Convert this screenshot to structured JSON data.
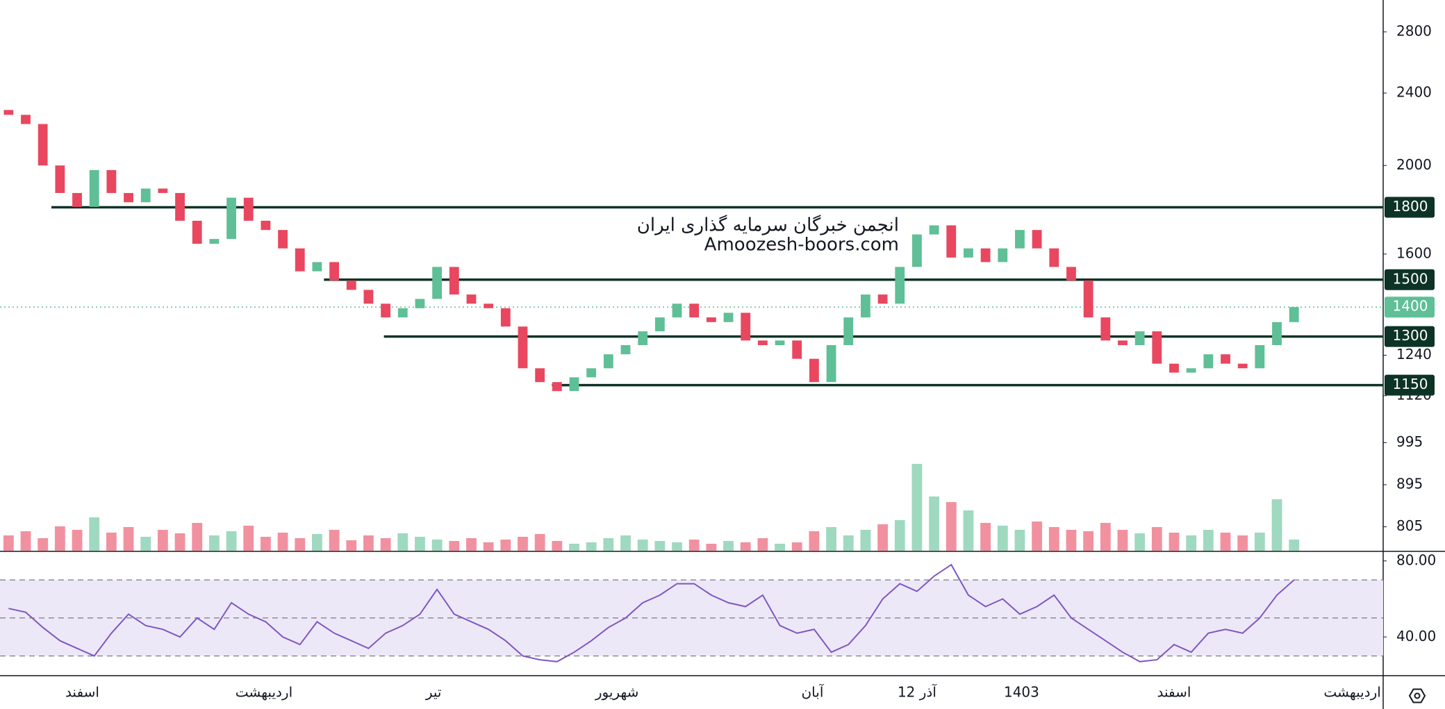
{
  "chart_data": {
    "type": "candlestick",
    "log_scale": true,
    "up_color": "#5fbf96",
    "down_color": "#e8475f",
    "open": [
      2300,
      2272,
      2220,
      2000,
      1866,
      1802,
      1977,
      1866,
      1823,
      1887,
      1866,
      1740,
      1642,
      1662,
      1844,
      1740,
      1700,
      1623,
      1532,
      1568,
      1497,
      1462,
      1412,
      1364,
      1396,
      1429,
      1549,
      1445,
      1412,
      1396,
      1333,
      1200,
      1159,
      1133,
      1173,
      1200,
      1243,
      1272,
      1317,
      1364,
      1412,
      1364,
      1348,
      1380,
      1287,
      1272,
      1287,
      1229,
      1159,
      1272,
      1364,
      1445,
      1412,
      1549,
      1681,
      1720,
      1586,
      1623,
      1568,
      1623,
      1700,
      1623,
      1549,
      1497,
      1364,
      1287,
      1272,
      1317,
      1214,
      1187,
      1200,
      1243,
      1214,
      1200,
      1272,
      1348
    ],
    "close": [
      2272,
      2220,
      2000,
      1866,
      1802,
      1977,
      1866,
      1823,
      1887,
      1866,
      1740,
      1642,
      1662,
      1844,
      1740,
      1700,
      1623,
      1532,
      1568,
      1497,
      1462,
      1412,
      1364,
      1396,
      1429,
      1549,
      1445,
      1412,
      1396,
      1333,
      1200,
      1159,
      1133,
      1173,
      1200,
      1243,
      1272,
      1317,
      1364,
      1412,
      1364,
      1348,
      1380,
      1287,
      1272,
      1287,
      1229,
      1159,
      1272,
      1364,
      1445,
      1412,
      1549,
      1681,
      1720,
      1586,
      1623,
      1568,
      1623,
      1700,
      1623,
      1549,
      1497,
      1364,
      1287,
      1272,
      1317,
      1214,
      1187,
      1200,
      1243,
      1214,
      1200,
      1272,
      1348,
      1400
    ],
    "ylim": [
      758,
      3034
    ],
    "yticks": [
      2800,
      2400,
      2000,
      1600,
      1240,
      1120,
      995,
      895,
      805
    ],
    "xlim": [
      -0.5,
      80.2
    ],
    "xticks": [
      {
        "value": 4.3,
        "label": "اسفند"
      },
      {
        "value": 14.9,
        "label": "اردیبهشت"
      },
      {
        "value": 24.8,
        "label": "تیر"
      },
      {
        "value": 35.5,
        "label": "شهریور"
      },
      {
        "value": 46.9,
        "label": "آبان"
      },
      {
        "value": 53.0,
        "label": "12 آذر"
      },
      {
        "value": 59.1,
        "label": "1403"
      },
      {
        "value": 68.0,
        "label": "اسفند"
      },
      {
        "value": 78.4,
        "label": "اردیبهشت"
      }
    ],
    "levels": [
      {
        "value": 1800,
        "start": 2.5
      },
      {
        "value": 1500,
        "start": 18.4
      },
      {
        "value": 1300,
        "start": 21.9
      },
      {
        "value": 1150,
        "start": 31.7
      }
    ],
    "level_color": "#0d3326",
    "last_price": 1400,
    "last_price_color": "#5fbf96",
    "watermark": [
      "انجمن خبرگان سرمایه گذاری ایران",
      "Amoozesh-boors.com"
    ],
    "volume": {
      "values": [
        22,
        28,
        18,
        35,
        30,
        48,
        26,
        34,
        20,
        30,
        25,
        40,
        22,
        28,
        36,
        20,
        26,
        18,
        24,
        30,
        15,
        22,
        18,
        25,
        20,
        16,
        14,
        18,
        12,
        16,
        20,
        24,
        14,
        10,
        12,
        18,
        22,
        16,
        14,
        12,
        16,
        10,
        14,
        12,
        18,
        10,
        12,
        28,
        34,
        22,
        30,
        38,
        44,
        125,
        78,
        70,
        58,
        40,
        36,
        30,
        42,
        34,
        30,
        28,
        40,
        30,
        25,
        34,
        26,
        22,
        30,
        26,
        22,
        26,
        74,
        16
      ]
    },
    "rsi": {
      "color": "#7e57c2",
      "band_color": "#ede8f7",
      "ylim": [
        20,
        84.3
      ],
      "yticks": [
        {
          "value": 80,
          "label": "80.00"
        },
        {
          "value": 40,
          "label": "40.00"
        }
      ],
      "levels": [
        70,
        50,
        30
      ],
      "values": [
        55,
        53,
        45,
        38,
        34,
        30,
        42,
        52,
        46,
        44,
        40,
        50,
        44,
        58,
        52,
        48,
        40,
        36,
        48,
        42,
        38,
        34,
        42,
        46,
        52,
        65,
        52,
        48,
        44,
        38,
        30,
        28,
        27,
        32,
        38,
        45,
        50,
        58,
        62,
        68,
        68,
        62,
        58,
        56,
        62,
        46,
        42,
        44,
        32,
        36,
        46,
        60,
        68,
        64,
        72,
        78,
        62,
        56,
        60,
        52,
        56,
        62,
        50,
        44,
        38,
        32,
        27,
        28,
        36,
        32,
        42,
        44,
        42,
        50,
        62,
        70
      ]
    }
  }
}
